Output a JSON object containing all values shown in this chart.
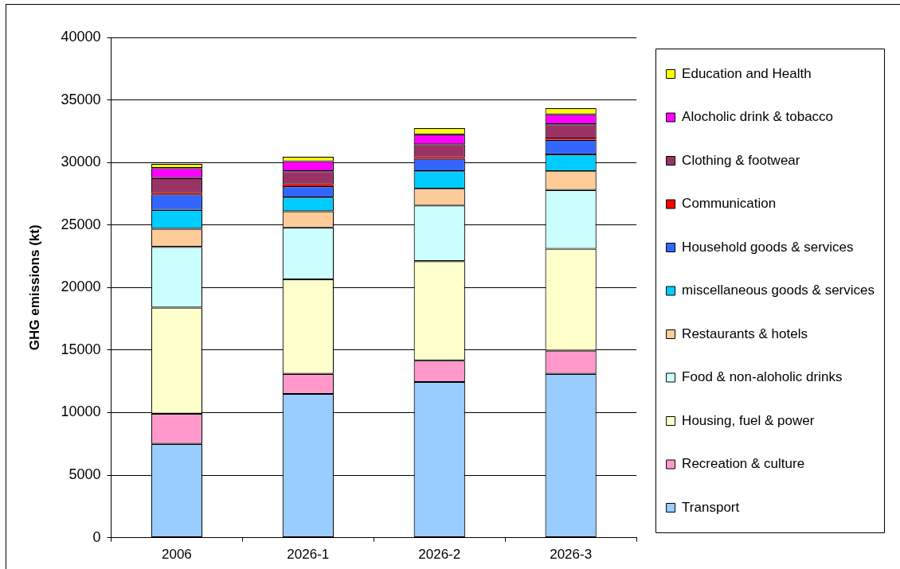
{
  "chart_data": {
    "type": "bar",
    "stacked": true,
    "ylabel": "GHG emissions (kt)",
    "categories": [
      "2006",
      "2026-1",
      "2026-2",
      "2026-3"
    ],
    "ylim": [
      0,
      40000
    ],
    "yticks": [
      0,
      5000,
      10000,
      15000,
      20000,
      25000,
      30000,
      35000,
      40000
    ],
    "grid": "y",
    "legend": "right",
    "series": [
      {
        "name": "Transport",
        "color": "#99ccff",
        "values": [
          7500,
          11500,
          12450,
          13100
        ]
      },
      {
        "name": "Recreation & culture",
        "color": "#ff99cc",
        "values": [
          2400,
          1600,
          1700,
          1850
        ]
      },
      {
        "name": "Housing, fuel & power",
        "color": "#ffffcc",
        "values": [
          8500,
          7550,
          7950,
          8150
        ]
      },
      {
        "name": "Food & non-aloholic drinks",
        "color": "#ccffff",
        "values": [
          4850,
          4150,
          4450,
          4700
        ]
      },
      {
        "name": "Restaurants & hotels",
        "color": "#ffcc99",
        "values": [
          1450,
          1300,
          1350,
          1500
        ]
      },
      {
        "name": "miscellaneous goods & services",
        "color": "#00ccff",
        "values": [
          1500,
          1100,
          1400,
          1350
        ]
      },
      {
        "name": "Household goods & services",
        "color": "#3366ff",
        "values": [
          1250,
          900,
          1000,
          1150
        ]
      },
      {
        "name": "Communication",
        "color": "#ff0000",
        "values": [
          100,
          150,
          100,
          100
        ]
      },
      {
        "name": "Clothing & footwear",
        "color": "#993366",
        "values": [
          1200,
          1050,
          1050,
          1150
        ]
      },
      {
        "name": "Alocholic drink & tobacco",
        "color": "#ff00ff",
        "values": [
          800,
          800,
          800,
          800
        ]
      },
      {
        "name": "Education and Health",
        "color": "#ffff00",
        "values": [
          350,
          350,
          500,
          500
        ]
      }
    ]
  }
}
